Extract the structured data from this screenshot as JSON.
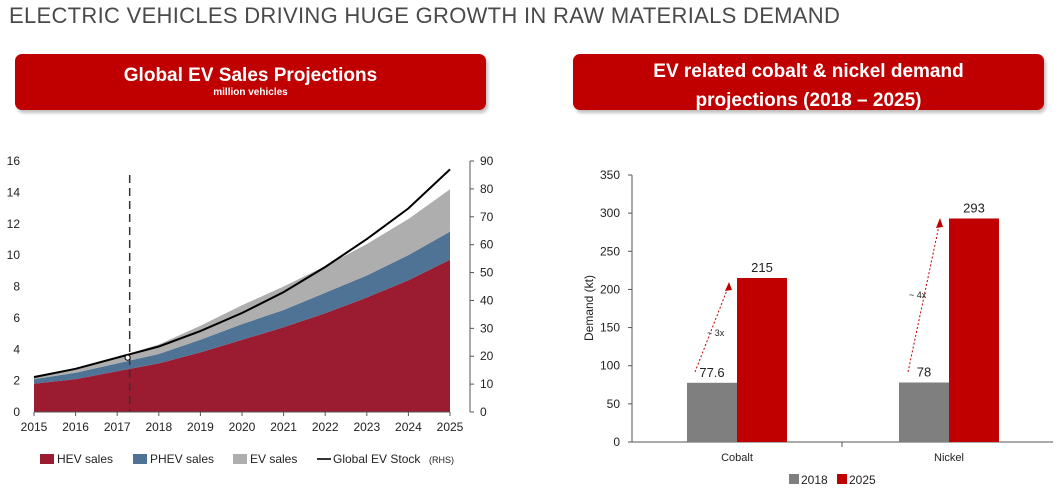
{
  "page_title": "ELECTRIC VEHICLES DRIVING HUGE GROWTH IN RAW MATERIALS DEMAND",
  "left_banner": {
    "title": "Global EV Sales Projections",
    "subtitle": "million vehicles"
  },
  "right_banner": {
    "title_line1": "EV related cobalt & nickel demand",
    "title_line2": "projections (2018 – 2025)"
  },
  "colors": {
    "banner": "#c00000",
    "hev": "#9b1b30",
    "phev": "#4f7394",
    "ev": "#aeaeae",
    "stock": "#000000",
    "bar_2018": "#7f7f7f",
    "bar_2025": "#c00000"
  },
  "chart_data": [
    {
      "type": "area",
      "x": [
        2015,
        2016,
        2017,
        2018,
        2019,
        2020,
        2021,
        2022,
        2023,
        2024,
        2025
      ],
      "xlim": [
        2015,
        2025
      ],
      "ylim": [
        0,
        16
      ],
      "y_ticks": [
        0,
        2,
        4,
        6,
        8,
        10,
        12,
        14,
        16
      ],
      "y2lim": [
        0,
        90
      ],
      "y2_ticks": [
        0,
        10,
        20,
        30,
        40,
        50,
        60,
        70,
        80,
        90
      ],
      "stacked": true,
      "series": [
        {
          "name": "HEV sales",
          "values": [
            1.8,
            2.1,
            2.6,
            3.1,
            3.8,
            4.6,
            5.4,
            6.3,
            7.3,
            8.4,
            9.7
          ]
        },
        {
          "name": "PHEV sales",
          "values": [
            0.3,
            0.4,
            0.5,
            0.6,
            0.8,
            1.0,
            1.1,
            1.3,
            1.4,
            1.6,
            1.8
          ]
        },
        {
          "name": "EV sales",
          "values": [
            0.2,
            0.3,
            0.4,
            0.6,
            0.9,
            1.2,
            1.5,
            1.7,
            2.0,
            2.3,
            2.7
          ]
        }
      ],
      "line_series": {
        "name": "Global EV Stock",
        "legend_suffix": "(RHS)",
        "axis": "right",
        "values": [
          12.5,
          15.5,
          19.5,
          23.5,
          29,
          35.5,
          43,
          52,
          62,
          73,
          87
        ]
      },
      "marker": {
        "x": 2017.25,
        "y2": 19.5
      },
      "vertical_reference_x": 2017.3,
      "legend_position": "bottom"
    },
    {
      "type": "bar",
      "categories": [
        "Cobalt",
        "Nickel"
      ],
      "series": [
        {
          "name": "2018",
          "values": [
            77.6,
            78
          ]
        },
        {
          "name": "2025",
          "values": [
            215,
            293
          ]
        }
      ],
      "data_labels": {
        "2018": [
          "77.6",
          "78"
        ],
        "2025": [
          "215",
          "293"
        ]
      },
      "annotations": [
        "~ 3x",
        "~ 4x"
      ],
      "ylabel": "Demand (kt)",
      "ylim": [
        0,
        350
      ],
      "y_ticks": [
        0,
        50,
        100,
        150,
        200,
        250,
        300,
        350
      ],
      "legend_position": "bottom"
    }
  ]
}
